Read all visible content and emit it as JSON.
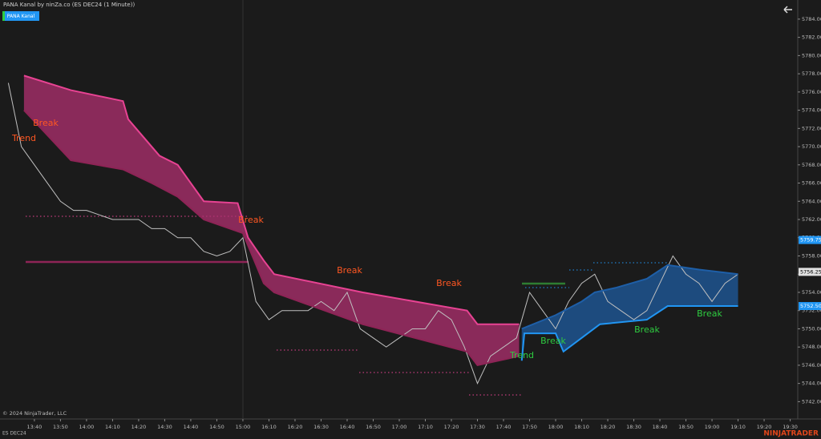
{
  "chart_data": {
    "type": "line",
    "title": "PANA Kanal by ninZa.co (ES DEC24 (1 Minute))",
    "indicator_button": "PANA Kanal",
    "copyright": "© 2024 NinjaTrader, LLC",
    "instrument": "ES DEC24",
    "brand": "NINJATRADER",
    "xlim": [
      -13.2,
      292.9
    ],
    "xticks": [
      {
        "value": 0,
        "label": "13:40"
      },
      {
        "value": 10,
        "label": "13:50"
      },
      {
        "value": 20,
        "label": "14:00"
      },
      {
        "value": 30,
        "label": "14:10"
      },
      {
        "value": 40,
        "label": "14:20"
      },
      {
        "value": 50,
        "label": "14:30"
      },
      {
        "value": 60,
        "label": "14:40"
      },
      {
        "value": 70,
        "label": "14:50"
      },
      {
        "value": 80,
        "label": "15:00"
      },
      {
        "value": 90,
        "label": "16:10"
      },
      {
        "value": 100,
        "label": "16:20"
      },
      {
        "value": 110,
        "label": "16:30"
      },
      {
        "value": 120,
        "label": "16:40"
      },
      {
        "value": 130,
        "label": "16:50"
      },
      {
        "value": 140,
        "label": "17:00"
      },
      {
        "value": 150,
        "label": "17:10"
      },
      {
        "value": 160,
        "label": "17:20"
      },
      {
        "value": 170,
        "label": "17:30"
      },
      {
        "value": 180,
        "label": "17:40"
      },
      {
        "value": 190,
        "label": "17:50"
      },
      {
        "value": 200,
        "label": "18:00"
      },
      {
        "value": 210,
        "label": "18:10"
      },
      {
        "value": 220,
        "label": "18:20"
      },
      {
        "value": 230,
        "label": "18:30"
      },
      {
        "value": 240,
        "label": "18:40"
      },
      {
        "value": 250,
        "label": "18:50"
      },
      {
        "value": 260,
        "label": "19:00"
      },
      {
        "value": 270,
        "label": "19:10"
      },
      {
        "value": 280,
        "label": "19:20"
      },
      {
        "value": 290,
        "label": "19:30"
      }
    ],
    "ylim": [
      5740.1,
      5786.1
    ],
    "yticks": [
      {
        "value": 5742,
        "label": "5742.00"
      },
      {
        "value": 5744,
        "label": "5744.00"
      },
      {
        "value": 5746,
        "label": "5746.00"
      },
      {
        "value": 5748,
        "label": "5748.00"
      },
      {
        "value": 5750,
        "label": "5750.00"
      },
      {
        "value": 5752,
        "label": "5752.00"
      },
      {
        "value": 5754,
        "label": "5754.00"
      },
      {
        "value": 5756,
        "label": "5756.00"
      },
      {
        "value": 5758,
        "label": "5758.00"
      },
      {
        "value": 5760,
        "label": "5760.00"
      },
      {
        "value": 5762,
        "label": "5762.00"
      },
      {
        "value": 5764,
        "label": "5764.00"
      },
      {
        "value": 5766,
        "label": "5766.00"
      },
      {
        "value": 5768,
        "label": "5768.00"
      },
      {
        "value": 5770,
        "label": "5770.00"
      },
      {
        "value": 5772,
        "label": "5772.00"
      },
      {
        "value": 5774,
        "label": "5774.00"
      },
      {
        "value": 5776,
        "label": "5776.00"
      },
      {
        "value": 5778,
        "label": "5778.00"
      },
      {
        "value": 5780,
        "label": "5780.00"
      },
      {
        "value": 5782,
        "label": "5782.00"
      },
      {
        "value": 5784,
        "label": "5784.00"
      }
    ],
    "price_labels": [
      {
        "value": 5759.75,
        "color": "#2196f3"
      },
      {
        "value": 5756.25,
        "color": "#e0e0e0"
      },
      {
        "value": 5752.5,
        "label": "5752.50",
        "color": "#2196f3"
      }
    ],
    "series": [
      {
        "color": "#c0c0c0",
        "x": [
          -10,
          -5,
          0,
          5,
          10,
          15,
          20,
          25,
          30,
          35,
          40,
          45,
          50,
          55,
          60,
          65,
          70,
          75,
          80,
          85,
          90,
          95,
          100,
          105,
          110,
          115,
          120,
          125,
          130,
          135,
          140,
          145,
          150,
          155,
          160,
          165,
          170,
          175,
          180,
          185,
          190,
          195,
          200,
          205,
          210,
          215,
          220,
          225,
          230,
          235,
          240,
          245,
          250,
          255,
          260,
          265,
          270
        ],
        "values": [
          5777,
          5770,
          5768,
          5766,
          5764,
          5763,
          5763,
          5762.5,
          5762,
          5762,
          5762,
          5761,
          5761,
          5760,
          5760,
          5758.5,
          5758,
          5758.5,
          5760,
          5753,
          5751,
          5752,
          5752,
          5752,
          5753,
          5752,
          5754,
          5750,
          5749,
          5748,
          5749,
          5750,
          5750,
          5752,
          5751,
          5748,
          5744,
          5747,
          5748,
          5749,
          5754,
          5752,
          5750,
          5753,
          5755,
          5756,
          5753,
          5752,
          5751,
          5752,
          5755,
          5758,
          5756,
          5755,
          5753,
          5755,
          5756
        ]
      },
      {
        "color": "#e84393",
        "x": [
          -4,
          14,
          34,
          36,
          39,
          45,
          48,
          55,
          60,
          65,
          78,
          82,
          88,
          92,
          126,
          166,
          170,
          186
        ],
        "values": [
          5777.8,
          5776.2,
          5775,
          5773,
          5772,
          5770,
          5769,
          5768,
          5766,
          5764,
          5763.8,
          5760,
          5757.5,
          5756,
          5754,
          5752,
          5750.5,
          5750.5
        ]
      },
      {
        "color": "#8e2456",
        "x": [
          -4,
          14,
          34,
          45,
          55,
          65,
          80,
          88,
          92,
          126,
          166,
          170,
          186
        ],
        "values": [
          5774,
          5768.5,
          5767.5,
          5766,
          5764.5,
          5762,
          5760.5,
          5755,
          5754,
          5750.5,
          5747.5,
          5746,
          5747
        ]
      },
      {
        "color": "#1e5fa8",
        "x": [
          187,
          200,
          210,
          215,
          223,
          235,
          243,
          255,
          270
        ],
        "values": [
          5750,
          5751.5,
          5753,
          5754,
          5754.5,
          5755.5,
          5757,
          5756.5,
          5756
        ]
      },
      {
        "color": "#2196f3",
        "x": [
          187,
          188,
          200,
          203,
          210,
          217,
          235,
          243,
          270
        ],
        "values": [
          5746.5,
          5749.5,
          5749.5,
          5747.5,
          5749,
          5750.5,
          5751,
          5752.5,
          5752.5
        ]
      }
    ],
    "annotations": [
      {
        "text": "Break",
        "color": "#ff5722"
      },
      {
        "text": "Trend",
        "color": "#ff5722"
      },
      {
        "text": "Break",
        "color": "#ff5722"
      },
      {
        "text": "Break",
        "color": "#ff5722"
      },
      {
        "text": "Break",
        "color": "#ff5722"
      },
      {
        "text": "Trend",
        "color": "#2ecc40"
      },
      {
        "text": "Break",
        "color": "#2ecc40"
      },
      {
        "text": "Break",
        "color": "#2ecc40"
      },
      {
        "text": "Break",
        "color": "#2ecc40"
      }
    ]
  }
}
